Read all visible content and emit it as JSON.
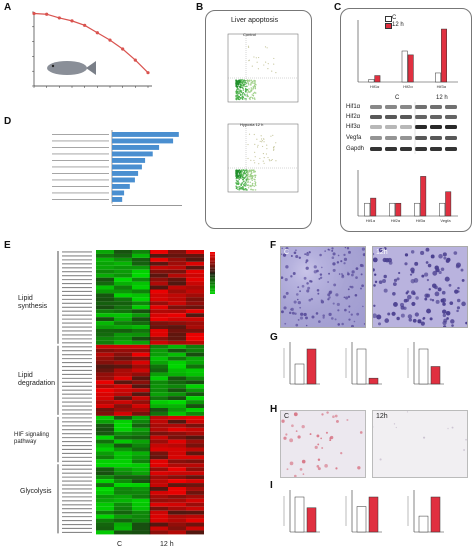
{
  "panels": {
    "A": "A",
    "B": "B",
    "C": "C",
    "D": "D",
    "E": "E",
    "F": "F",
    "G": "G",
    "H": "H",
    "I": "I"
  },
  "panelB": {
    "title": "Liver apoptosis",
    "top_label": "Control",
    "bottom_label": "Hypoxia 12 h"
  },
  "panelC": {
    "legend": [
      "C",
      "12 h"
    ],
    "blot_headers": [
      "C",
      "12 h"
    ],
    "blot_rows": [
      "Hif1α",
      "Hif2α",
      "Hif3α",
      "Vegfa",
      "Gapdh"
    ],
    "top_categories": [
      "Hif1α",
      "Hif2α",
      "Hif3α"
    ],
    "bottom_categories": [
      "Hif1α",
      "Hif2α",
      "Hif3α",
      "Vegfa"
    ]
  },
  "panelE": {
    "groups": [
      "Lipid synthesis",
      "Lipid degradation",
      "HIF signaling pathway",
      "Glycolysis"
    ],
    "x_labels": [
      "C",
      "12 h"
    ]
  },
  "panelF": {
    "labels": [
      "C",
      "12h"
    ]
  },
  "panelH": {
    "labels": [
      "C",
      "12h"
    ]
  },
  "colors": {
    "control": "#ffffff",
    "hypoxia": "#e03040",
    "accent": "#d9534f",
    "bar_blue": "#4a8fd0"
  },
  "chart_data": [
    {
      "panel": "A",
      "type": "line",
      "x": [
        0,
        3,
        6,
        9,
        12,
        15,
        18,
        21,
        24,
        27
      ],
      "values": [
        98,
        97,
        92,
        88,
        82,
        72,
        62,
        50,
        35,
        18
      ],
      "ylim": [
        0,
        100
      ]
    },
    {
      "panel": "C-top",
      "type": "bar",
      "categories": [
        "Hif1α",
        "Hif2α",
        "Hif3α"
      ],
      "series": [
        {
          "name": "C",
          "values": [
            1.0,
            12.0,
            3.5
          ]
        },
        {
          "name": "12 h",
          "values": [
            2.5,
            10.5,
            20.5
          ]
        }
      ]
    },
    {
      "panel": "C-bottom",
      "type": "bar",
      "categories": [
        "Hif1α",
        "Hif2α",
        "Hif3α",
        "Vegfa"
      ],
      "series": [
        {
          "name": "C",
          "values": [
            1.0,
            1.0,
            1.0,
            1.0
          ]
        },
        {
          "name": "12 h",
          "values": [
            1.4,
            1.0,
            3.1,
            1.9
          ]
        }
      ]
    },
    {
      "panel": "D",
      "type": "bar",
      "values": [
        10.5,
        9.6,
        7.4,
        6.4,
        5.2,
        4.7,
        4.1,
        3.6,
        2.8,
        1.9,
        1.6
      ]
    },
    {
      "panel": "G",
      "type": "bar",
      "groups": [
        {
          "values": [
            1.0,
            1.75
          ]
        },
        {
          "values": [
            2.4,
            0.4
          ]
        },
        {
          "values": [
            12.0,
            6.0
          ]
        }
      ]
    },
    {
      "panel": "I",
      "type": "bar",
      "groups": [
        {
          "values": [
            13.0,
            9.0
          ]
        },
        {
          "values": [
            0.8,
            1.1
          ]
        },
        {
          "values": [
            1.0,
            2.2
          ]
        }
      ]
    }
  ]
}
